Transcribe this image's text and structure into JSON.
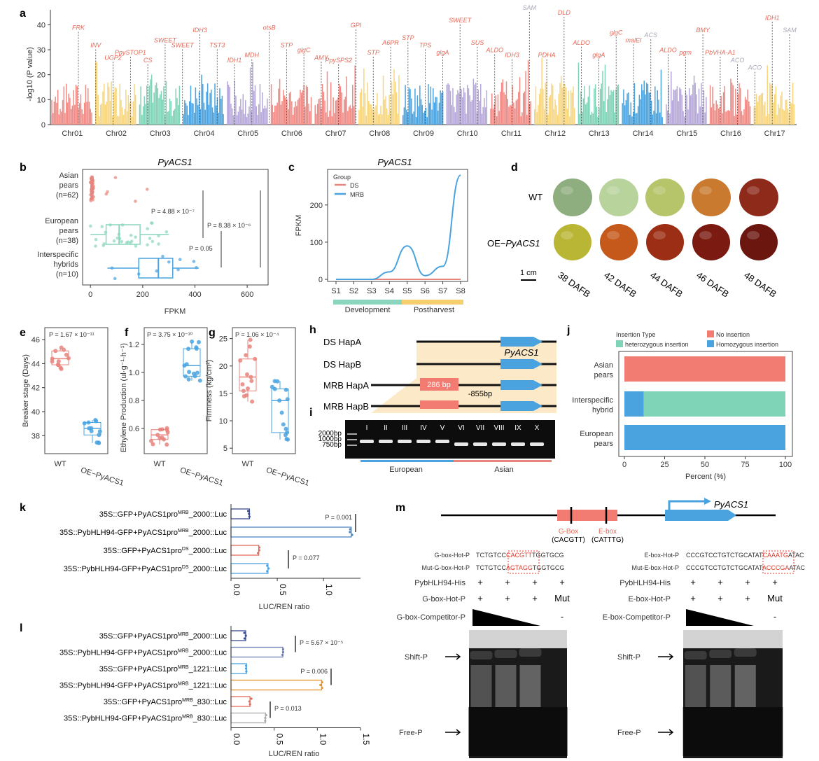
{
  "panels": {
    "a": {
      "label": "a",
      "ylabel": "-log10 (P value)",
      "yticks": [
        "0",
        "10",
        "20",
        "30",
        "40"
      ],
      "chromosomes": [
        "Chr01",
        "Chr02",
        "Chr03",
        "Chr04",
        "Chr05",
        "Chr06",
        "Chr07",
        "Chr08",
        "Chr09",
        "Chr10",
        "Chr11",
        "Chr12",
        "Chr13",
        "Chr14",
        "Chr15",
        "Chr16",
        "Chr17"
      ],
      "chrom_colors": [
        "#f08a85",
        "#f7d67e",
        "#7fd3b6",
        "#4aa3df",
        "#b6a8d8",
        "#f08a85",
        "#f08a85",
        "#f7d67e",
        "#4aa3df",
        "#b6a8d8",
        "#f08a85",
        "#f7d67e",
        "#7fd3b6",
        "#4aa3df",
        "#b6a8d8",
        "#f08a85",
        "#f7d67e"
      ],
      "genes": [
        {
          "name": "FRK",
          "v": 38,
          "gray": false
        },
        {
          "name": "INV",
          "v": 31,
          "gray": false
        },
        {
          "name": "UGP2",
          "v": 26,
          "gray": false
        },
        {
          "name": "PpySTOP1",
          "v": 28,
          "gray": false
        },
        {
          "name": "CS",
          "v": 25,
          "gray": false
        },
        {
          "name": "SWEET",
          "v": 33,
          "gray": false
        },
        {
          "name": "SWEET",
          "v": 31,
          "gray": false
        },
        {
          "name": "IDH3",
          "v": 37,
          "gray": false
        },
        {
          "name": "TST3",
          "v": 31,
          "gray": false
        },
        {
          "name": "IDH1",
          "v": 25,
          "gray": false
        },
        {
          "name": "MDH",
          "v": 27,
          "gray": false
        },
        {
          "name": "otsB",
          "v": 38,
          "gray": false
        },
        {
          "name": "STP",
          "v": 31,
          "gray": false
        },
        {
          "name": "glgC",
          "v": 29,
          "gray": false
        },
        {
          "name": "AMY",
          "v": 26,
          "gray": false
        },
        {
          "name": "PpySPS2",
          "v": 25,
          "gray": false
        },
        {
          "name": "GPI",
          "v": 39,
          "gray": false
        },
        {
          "name": "STP",
          "v": 28,
          "gray": false
        },
        {
          "name": "A6PR",
          "v": 32,
          "gray": false
        },
        {
          "name": "STP",
          "v": 34,
          "gray": false
        },
        {
          "name": "TPS",
          "v": 31,
          "gray": false
        },
        {
          "name": "glgA",
          "v": 28,
          "gray": false
        },
        {
          "name": "SWEET",
          "v": 41,
          "gray": false
        },
        {
          "name": "SUS",
          "v": 32,
          "gray": false
        },
        {
          "name": "ALDO",
          "v": 29,
          "gray": false
        },
        {
          "name": "IDH3",
          "v": 27,
          "gray": false
        },
        {
          "name": "SAM",
          "v": 46,
          "gray": true
        },
        {
          "name": "PDHA",
          "v": 27,
          "gray": false
        },
        {
          "name": "DLD",
          "v": 44,
          "gray": false
        },
        {
          "name": "ALDO",
          "v": 32,
          "gray": false
        },
        {
          "name": "glgA",
          "v": 27,
          "gray": false
        },
        {
          "name": "glgC",
          "v": 36,
          "gray": false
        },
        {
          "name": "malEI",
          "v": 33,
          "gray": false
        },
        {
          "name": "ACS",
          "v": 35,
          "gray": true
        },
        {
          "name": "ALDO",
          "v": 29,
          "gray": false
        },
        {
          "name": "pgm",
          "v": 28,
          "gray": false
        },
        {
          "name": "BMY",
          "v": 37,
          "gray": false
        },
        {
          "name": "PbVHA-A1",
          "v": 28,
          "gray": false
        },
        {
          "name": "ACO",
          "v": 25,
          "gray": true
        },
        {
          "name": "ACO",
          "v": 22,
          "gray": true
        },
        {
          "name": "IDH1",
          "v": 42,
          "gray": false
        },
        {
          "name": "SAM",
          "v": 37,
          "gray": true
        }
      ]
    },
    "b": {
      "label": "b",
      "title": "PyACS1",
      "xlabel": "FPKM",
      "xticks": [
        "0",
        "200",
        "400",
        "600"
      ],
      "groups": [
        {
          "line1": "Asian",
          "line2": "pears",
          "line3": "(n=62)",
          "color": "#e8847c",
          "q1": 2,
          "median": 5,
          "q3": 8,
          "wmin": 0,
          "wmax": 15
        },
        {
          "line1": "European",
          "line2": "pears",
          "line3": "(n=38)",
          "color": "#8bd5be",
          "q1": 60,
          "median": 110,
          "q3": 190,
          "wmin": 0,
          "wmax": 300
        },
        {
          "line1": "Interspecific",
          "line2": "hybrids",
          "line3": "(n=10)",
          "color": "#4aa3df",
          "q1": 185,
          "median": 260,
          "q3": 315,
          "wmin": 65,
          "wmax": 415
        }
      ],
      "p1": "P = 4.88 × 10⁻⁷",
      "p2": "P = 8.38 × 10⁻⁶",
      "p3": "P = 0.05"
    },
    "c": {
      "label": "c",
      "title": "PyACS1",
      "ylabel": "FPKM",
      "yticks": [
        "0",
        "100",
        "200"
      ],
      "legend_title": "Group",
      "stages": [
        "S1",
        "S2",
        "S3",
        "S4",
        "S5",
        "S6",
        "S7",
        "S8"
      ],
      "series": [
        {
          "name": "DS",
          "color": "#e8847c",
          "values": [
            0,
            0,
            0,
            0,
            0,
            0,
            0,
            0
          ]
        },
        {
          "name": "MRB",
          "color": "#4aa3df",
          "values": [
            0,
            0,
            0,
            20,
            90,
            10,
            35,
            280
          ]
        }
      ],
      "band1": "Development",
      "band2": "Postharvest"
    },
    "d": {
      "label": "d",
      "row1": "WT",
      "row2_prefix": "OE−",
      "row2_gene": "PyACS1",
      "scale": "1 cm",
      "stages": [
        "38 DAFB",
        "42 DAFB",
        "44 DAFB",
        "46 DAFB",
        "48 DAFB"
      ],
      "wt_colors": [
        "#8fae80",
        "#b9d39c",
        "#b6c46a",
        "#c97a2f",
        "#8e2a1a"
      ],
      "oe_colors": [
        "#b9b635",
        "#c5591c",
        "#9b2e14",
        "#7a1a10",
        "#6c1610"
      ]
    },
    "e": {
      "label": "e",
      "ylabel": "Breaker stage (Days)",
      "p": "P = 1.67 × 10⁻¹¹",
      "yticks": [
        "38",
        "40",
        "42",
        "44",
        "46"
      ],
      "x1": "WT",
      "x2": "OE−PyACS1",
      "wt": [
        44.5,
        43.5,
        45.5
      ],
      "oe": [
        38.5,
        37.2,
        39.8
      ]
    },
    "f": {
      "label": "f",
      "ylabel": "Ethylene Production (ul·g⁻¹·h⁻¹)",
      "p": "P = 3.75 × 10⁻¹⁰",
      "yticks": [
        "0.6",
        "0.8",
        "1.0",
        "1.2"
      ],
      "x1": "WT",
      "x2": "OE−PyACS1"
    },
    "g": {
      "label": "g",
      "ylabel": "Firmness (kg/cm²)",
      "p": "P = 1.06 × 10⁻⁴",
      "yticks": [
        "5",
        "10",
        "15",
        "20",
        "25"
      ],
      "x1": "WT",
      "x2": "OE−PyACS1"
    },
    "h": {
      "label": "h",
      "rows": [
        "DS HapA",
        "DS HapB",
        "MRB HapA",
        "MRB HapB"
      ],
      "gene": "PyACS1",
      "insert": "286 bp",
      "pos": "-855bp"
    },
    "i": {
      "label": "i",
      "ladder": [
        "2000bp",
        "1000bp",
        "750bp"
      ],
      "lanes": [
        "I",
        "II",
        "III",
        "IV",
        "V",
        "VI",
        "VII",
        "VIII",
        "IX",
        "X"
      ],
      "grp1": "European",
      "grp2": "Asian"
    },
    "j": {
      "label": "j",
      "legend_title": "Insertion Type",
      "legend": [
        {
          "name": "No insertion",
          "color": "#f27c72"
        },
        {
          "name": "heterozygous insertion",
          "color": "#7fd3b6"
        },
        {
          "name": "Homozygous insertion",
          "color": "#4aa3df"
        }
      ],
      "groups": [
        "Asian pears",
        "Interspecific hybrid",
        "European pears"
      ],
      "values": [
        [
          100,
          0,
          0
        ],
        [
          0,
          88,
          12
        ],
        [
          0,
          0,
          100
        ]
      ],
      "xlabel": "Percent (%)",
      "xticks": [
        "0",
        "25",
        "50",
        "75",
        "100"
      ]
    },
    "k": {
      "label": "k",
      "xlabel": "LUC/REN ratio",
      "xticks": [
        "0.0",
        "0.5",
        "1.0"
      ],
      "rows": [
        {
          "l": "35S::GFP+PyACS1pro",
          "sup": "MRB",
          "r": "_2000::Luc",
          "v": 0.2,
          "c": "#3b4a8c"
        },
        {
          "l": "35S::PybHLH94-GFP+PyACS1pro",
          "sup": "MRB",
          "r": "_2000::Luc",
          "v": 1.3,
          "c": "#4a86c8"
        },
        {
          "l": "35S::GFP+PyACS1pro",
          "sup": "DS",
          "r": "_2000::Luc",
          "v": 0.3,
          "c": "#e26a5a"
        },
        {
          "l": "35S::PybHLH94-GFP+PyACS1pro",
          "sup": "DS",
          "r": "_2000::Luc",
          "v": 0.4,
          "c": "#4aa3df"
        }
      ],
      "p1": "P = 0.001",
      "p2": "P = 0.077"
    },
    "l": {
      "label": "l",
      "xlabel": "LUC/REN ratio",
      "xticks": [
        "0.0",
        "0.5",
        "1.0",
        "1.5"
      ],
      "rows": [
        {
          "l": "35S::GFP+PyACS1pro",
          "sup": "MRB",
          "r": "_2000::Luc",
          "v": 0.17,
          "c": "#3b4a8c"
        },
        {
          "l": "35S::PybHLH94-GFP+PyACS1pro",
          "sup": "MRB",
          "r": "_2000::Luc",
          "v": 0.6,
          "c": "#6d7fb8"
        },
        {
          "l": "35S::GFP+PyACS1pro",
          "sup": "MRB",
          "r": "_1221::Luc",
          "v": 0.18,
          "c": "#4aa3df"
        },
        {
          "l": "35S::PybHLH94-GFP+PyACS1pro",
          "sup": "MRB",
          "r": "_1221::Luc",
          "v": 1.05,
          "c": "#e8922a"
        },
        {
          "l": "35S::GFP+PyACS1pro",
          "sup": "MRB",
          "r": "_830::Luc",
          "v": 0.22,
          "c": "#e26a5a"
        },
        {
          "l": "35S::PybHLH94-GFP+PyACS1pro",
          "sup": "MRB",
          "r": "_830::Luc",
          "v": 0.4,
          "c": "#aaaaaa"
        }
      ],
      "p1": "P = 5.67 × 10⁻⁵",
      "p2": "P = 0.006",
      "p3": "P = 0.013"
    },
    "m": {
      "label": "m",
      "gene": "PyACS1",
      "gbox": "G-Box",
      "gbox_seq": "(CACGTT)",
      "ebox": "E-box",
      "ebox_seq": "(CATTTG)",
      "left": {
        "probe1_label": "G-box-Hot-P",
        "probe1_a": "TCTGTCC",
        "probe1_b": "CACGTT",
        "probe1_c": "TGGTGCG",
        "probe2_label": "Mut-G-box-Hot-P",
        "probe2_a": "TCTGTCC",
        "probe2_b": "AGTAGG",
        "probe2_c": "TGGTGCG",
        "row1": "PybHLH94-His",
        "row2": "G-box-Hot-P",
        "row3": "G-box-Competitor-P",
        "row1_vals": [
          "+",
          "+",
          "+",
          "+"
        ],
        "row2_vals": [
          "+",
          "+",
          "+",
          "Mut"
        ],
        "row3_vals": [
          "",
          "",
          "",
          "-"
        ]
      },
      "right": {
        "probe1_label": "E-box-Hot-P",
        "probe1_a": "CCCGTCCTGTCTGCATAT",
        "probe1_b": "CAAATG",
        "probe1_c": "ATAC",
        "probe2_label": "Mut-E-box-Hot-P",
        "probe2_a": "CCCGTCCTGTCTGCATAT",
        "probe2_b": "ACCCGA",
        "probe2_c": "ATAC",
        "row1": "PybHLH94-His",
        "row2": "E-box-Hot-P",
        "row3": "E-box-Competitor-P",
        "row1_vals": [
          "+",
          "+",
          "+",
          "+"
        ],
        "row2_vals": [
          "+",
          "+",
          "+",
          "Mut"
        ],
        "row3_vals": [
          "",
          "",
          "",
          "-"
        ]
      },
      "shift": "Shift-P",
      "free": "Free-P"
    }
  }
}
